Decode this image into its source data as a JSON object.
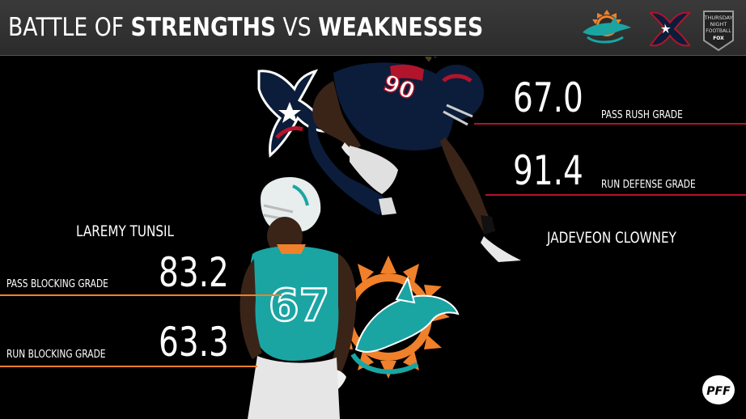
{
  "header": {
    "title_light_1": "BATTLE OF ",
    "title_bold_1": "STRENGTHS",
    "title_light_2": " VS ",
    "title_bold_2": "WEAKNESSES",
    "logos": [
      "dolphins-logo",
      "texans-logo",
      "thursday-night-football-logo"
    ]
  },
  "clowney": {
    "name": "JADEVEON CLOWNEY",
    "stats": [
      {
        "value": "67.0",
        "label": "PASS RUSH GRADE"
      },
      {
        "value": "91.4",
        "label": "RUN DEFENSE GRADE"
      }
    ]
  },
  "tunsil": {
    "name": "LAREMY TUNSIL",
    "stats": [
      {
        "value": "83.2",
        "label": "PASS BLOCKING GRADE"
      },
      {
        "value": "63.3",
        "label": "RUN BLOCKING GRADE"
      }
    ]
  },
  "tnf_logo": {
    "line1": "THURSDAY",
    "line2": "NIGHT",
    "line3": "FOOTBALL",
    "line4": "FOX"
  },
  "pff_logo": "PFF",
  "colors": {
    "texans_navy": "#0b1d3a",
    "texans_red": "#b2142b",
    "dolphins_aqua": "#1aa5a3",
    "dolphins_orange": "#f0802a"
  }
}
